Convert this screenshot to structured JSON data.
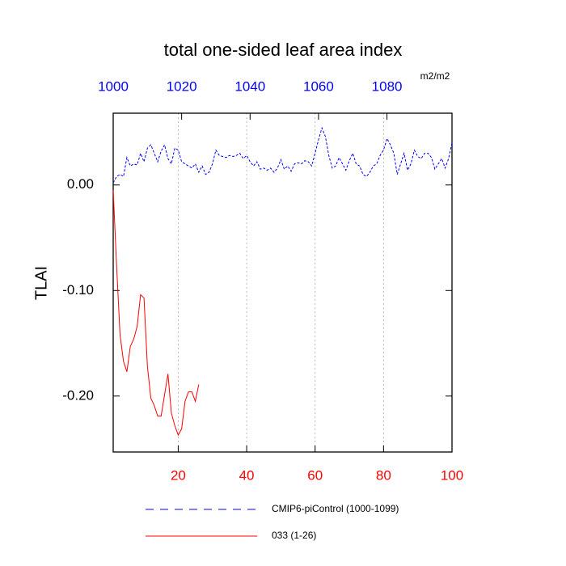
{
  "chart_data": {
    "type": "line",
    "title": "total one-sided leaf area index",
    "ylabel": "TLAI",
    "units": "m2/m2",
    "xlim": [
      1,
      100
    ],
    "xticks": [
      20,
      40,
      60,
      80,
      100
    ],
    "xaxis_color": "#ff0000",
    "x2lim": [
      1000,
      1099
    ],
    "x2ticks": [
      1000,
      1020,
      1040,
      1060,
      1080
    ],
    "x2axis_color": "#0000ff",
    "ylim": [
      -0.253,
      0.068
    ],
    "yticks": [
      {
        "value": 0,
        "label": "0.00"
      },
      {
        "value": -0.1,
        "label": "-0.10"
      },
      {
        "value": -0.2,
        "label": "-0.20"
      }
    ],
    "grid": true,
    "series": [
      {
        "name": "CMIP6-piControl (1000-1099)",
        "color": "#0000ff",
        "dashed": true,
        "x": [
          1,
          2,
          3,
          4,
          5,
          6,
          7,
          8,
          9,
          10,
          11,
          12,
          13,
          14,
          15,
          16,
          17,
          18,
          19,
          20,
          21,
          22,
          23,
          24,
          25,
          26,
          27,
          28,
          29,
          30,
          31,
          32,
          33,
          34,
          35,
          36,
          37,
          38,
          39,
          40,
          41,
          42,
          43,
          44,
          45,
          46,
          47,
          48,
          49,
          50,
          51,
          52,
          53,
          54,
          55,
          56,
          57,
          58,
          59,
          60,
          61,
          62,
          63,
          64,
          65,
          66,
          67,
          68,
          69,
          70,
          71,
          72,
          73,
          74,
          75,
          76,
          77,
          78,
          79,
          80,
          81,
          82,
          83,
          84,
          85,
          86,
          87,
          88,
          89,
          90,
          91,
          92,
          93,
          94,
          95,
          96,
          97,
          98,
          99,
          100
        ],
        "values": [
          0.002,
          0.008,
          0.01,
          0.008,
          0.026,
          0.018,
          0.02,
          0.019,
          0.03,
          0.022,
          0.035,
          0.038,
          0.03,
          0.022,
          0.032,
          0.038,
          0.025,
          0.02,
          0.035,
          0.033,
          0.022,
          0.02,
          0.018,
          0.016,
          0.02,
          0.012,
          0.018,
          0.01,
          0.012,
          0.02,
          0.033,
          0.028,
          0.027,
          0.026,
          0.028,
          0.027,
          0.028,
          0.03,
          0.025,
          0.028,
          0.022,
          0.018,
          0.022,
          0.015,
          0.016,
          0.014,
          0.016,
          0.012,
          0.016,
          0.024,
          0.015,
          0.018,
          0.013,
          0.02,
          0.021,
          0.02,
          0.023,
          0.022,
          0.018,
          0.03,
          0.043,
          0.054,
          0.046,
          0.028,
          0.016,
          0.018,
          0.026,
          0.02,
          0.014,
          0.023,
          0.03,
          0.02,
          0.018,
          0.01,
          0.008,
          0.012,
          0.018,
          0.02,
          0.028,
          0.033,
          0.044,
          0.038,
          0.03,
          0.01,
          0.02,
          0.03,
          0.014,
          0.02,
          0.033,
          0.027,
          0.025,
          0.03,
          0.03,
          0.026,
          0.015,
          0.02,
          0.025,
          0.016,
          0.025,
          0.04
        ]
      },
      {
        "name": "033 (1-26)",
        "color": "#ff0000",
        "dashed": false,
        "x": [
          1,
          2,
          3,
          4,
          5,
          6,
          7,
          8,
          9,
          10,
          11,
          12,
          13,
          14,
          15,
          16,
          17,
          18,
          19,
          20,
          21,
          22,
          23,
          24,
          25,
          26
        ],
        "values": [
          -0.005,
          -0.077,
          -0.142,
          -0.167,
          -0.177,
          -0.153,
          -0.146,
          -0.134,
          -0.104,
          -0.107,
          -0.172,
          -0.202,
          -0.209,
          -0.219,
          -0.219,
          -0.199,
          -0.179,
          -0.216,
          -0.228,
          -0.237,
          -0.231,
          -0.205,
          -0.196,
          -0.196,
          -0.205,
          -0.189
        ]
      }
    ]
  }
}
